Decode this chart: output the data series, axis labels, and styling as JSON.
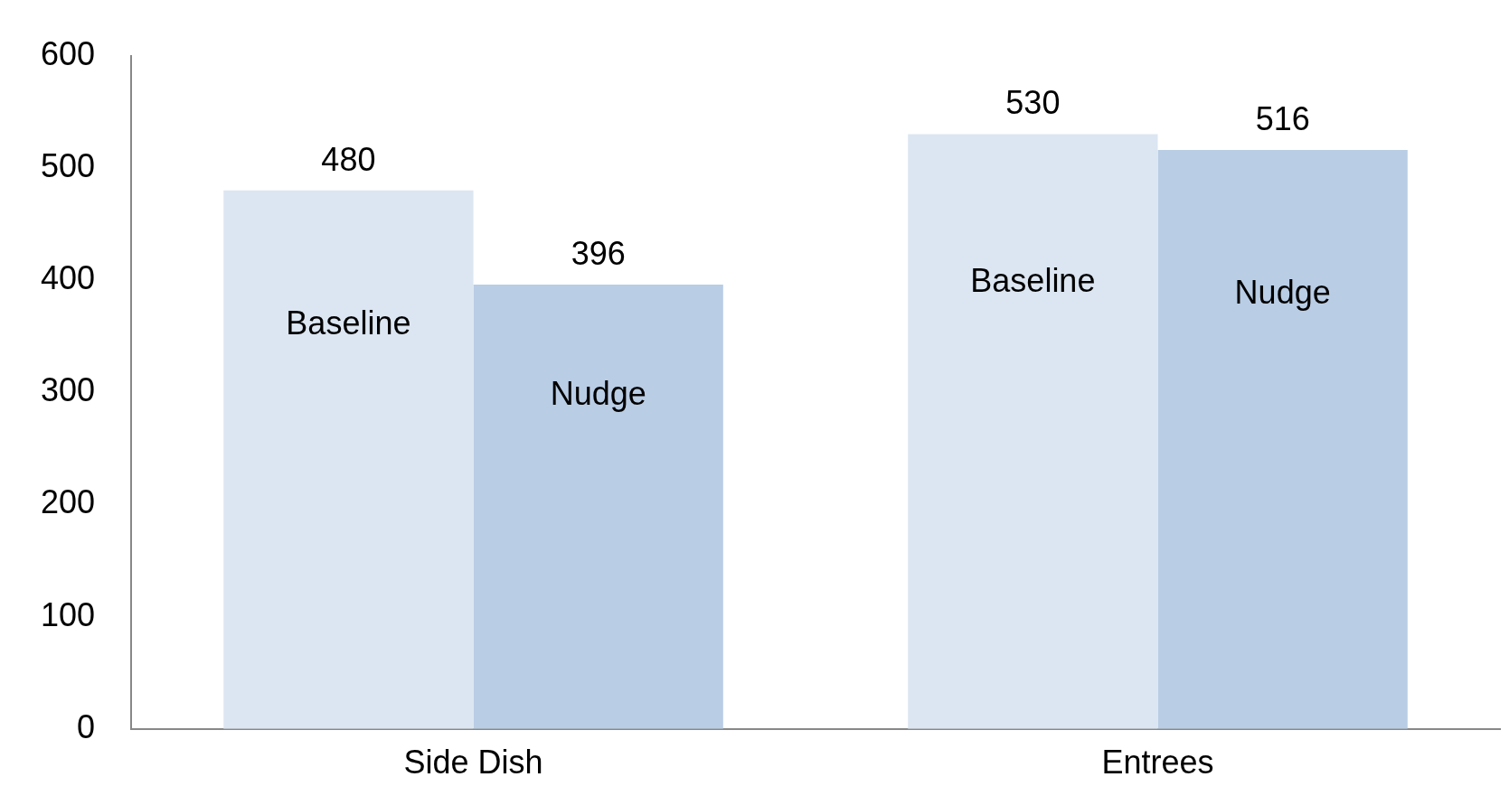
{
  "chart_data": {
    "type": "bar",
    "categories": [
      "Side Dish",
      "Entrees"
    ],
    "series": [
      {
        "name": "Baseline",
        "color": "#dce6f2",
        "values": [
          480,
          530
        ]
      },
      {
        "name": "Nudge",
        "color": "#b9cde5",
        "values": [
          396,
          516
        ]
      }
    ],
    "ylim": [
      0,
      600
    ],
    "yticks": [
      0,
      100,
      200,
      300,
      400,
      500,
      600
    ],
    "grid": false,
    "legend": false,
    "data_labels": true
  }
}
